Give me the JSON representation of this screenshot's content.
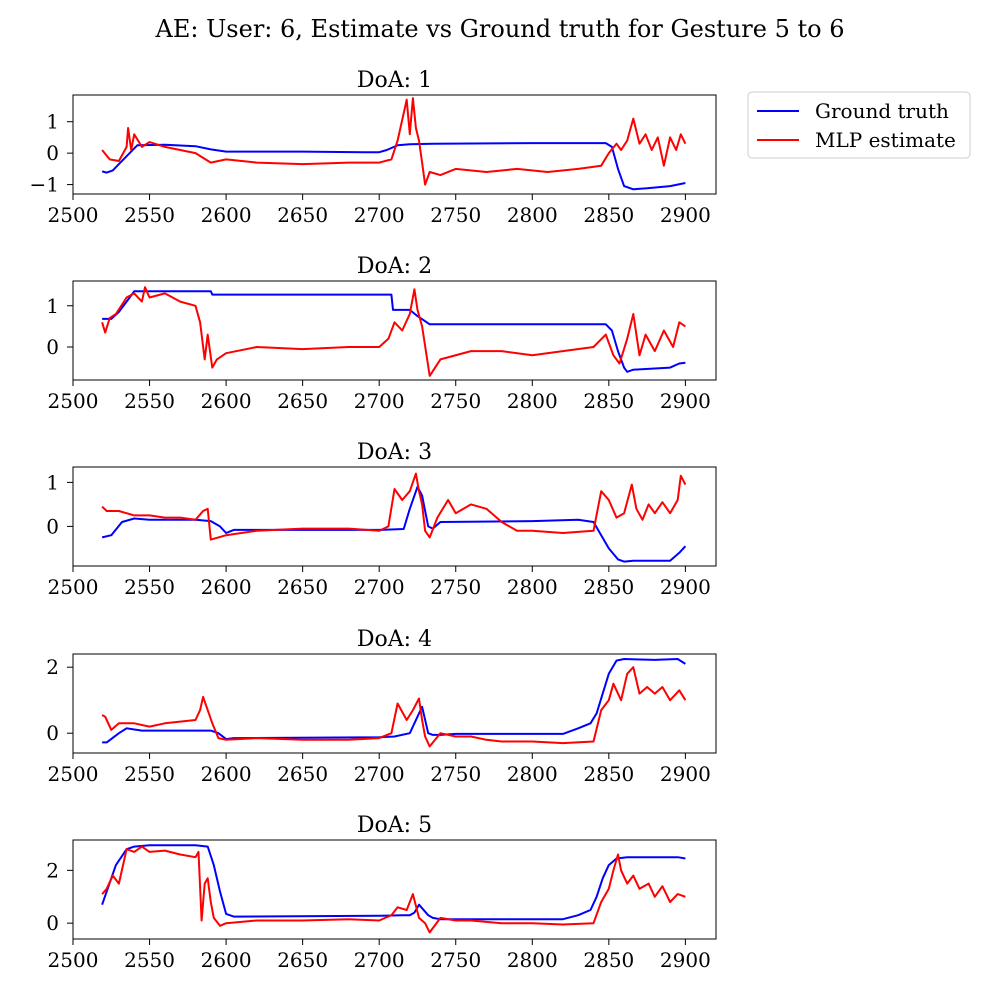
{
  "suptitle": "AE: User: 6, Estimate vs Ground truth for Gesture 5 to 6",
  "legend": [
    {
      "label": "Ground truth",
      "color": "#0000ff"
    },
    {
      "label": "MLP estimate",
      "color": "#ff0000"
    }
  ],
  "chart_data": [
    {
      "type": "line",
      "title": "DoA: 1",
      "xlim": [
        2500,
        2920
      ],
      "ylim": [
        -1.3,
        1.85
      ],
      "xticks": [
        2500,
        2550,
        2600,
        2650,
        2700,
        2750,
        2800,
        2850,
        2900
      ],
      "yticks": [
        -1,
        0,
        1
      ],
      "ytick_labels": [
        "−1",
        "0",
        "1"
      ],
      "series": [
        {
          "name": "Ground truth",
          "color": "#0000ff",
          "x": [
            2519,
            2522,
            2526,
            2530,
            2536,
            2542,
            2560,
            2580,
            2590,
            2600,
            2650,
            2690,
            2700,
            2705,
            2712,
            2720,
            2735,
            2800,
            2848,
            2852,
            2856,
            2860,
            2866,
            2875,
            2890,
            2900
          ],
          "y": [
            -0.58,
            -0.62,
            -0.55,
            -0.35,
            -0.05,
            0.25,
            0.27,
            0.22,
            0.12,
            0.05,
            0.05,
            0.03,
            0.03,
            0.1,
            0.25,
            0.28,
            0.3,
            0.32,
            0.32,
            0.2,
            -0.5,
            -1.05,
            -1.15,
            -1.12,
            -1.05,
            -0.95
          ]
        },
        {
          "name": "MLP estimate",
          "color": "#ff0000",
          "x": [
            2519,
            2524,
            2530,
            2535,
            2536,
            2538,
            2540,
            2545,
            2550,
            2560,
            2570,
            2580,
            2590,
            2600,
            2620,
            2650,
            2680,
            2700,
            2708,
            2712,
            2718,
            2720,
            2722,
            2724,
            2726,
            2728,
            2730,
            2733,
            2740,
            2750,
            2770,
            2790,
            2810,
            2830,
            2845,
            2850,
            2855,
            2858,
            2862,
            2866,
            2870,
            2874,
            2878,
            2882,
            2886,
            2890,
            2894,
            2897,
            2900
          ],
          "y": [
            0.1,
            -0.2,
            -0.25,
            0.2,
            0.8,
            0.1,
            0.6,
            0.2,
            0.35,
            0.2,
            0.1,
            0.0,
            -0.3,
            -0.2,
            -0.3,
            -0.35,
            -0.3,
            -0.3,
            -0.2,
            0.4,
            1.7,
            0.6,
            1.75,
            0.8,
            0.4,
            -0.3,
            -1.0,
            -0.6,
            -0.7,
            -0.5,
            -0.6,
            -0.5,
            -0.6,
            -0.5,
            -0.4,
            0.0,
            0.3,
            0.1,
            0.4,
            1.1,
            0.3,
            0.6,
            0.1,
            0.5,
            -0.4,
            0.5,
            0.1,
            0.6,
            0.3
          ]
        }
      ]
    },
    {
      "type": "line",
      "title": "DoA: 2",
      "xlim": [
        2500,
        2920
      ],
      "ylim": [
        -0.8,
        1.6
      ],
      "xticks": [
        2500,
        2550,
        2600,
        2650,
        2700,
        2750,
        2800,
        2850,
        2900
      ],
      "yticks": [
        0,
        1
      ],
      "ytick_labels": [
        "0",
        "1"
      ],
      "series": [
        {
          "name": "Ground truth",
          "color": "#0000ff",
          "x": [
            2519,
            2525,
            2530,
            2536,
            2540,
            2590,
            2591,
            2708,
            2709,
            2720,
            2725,
            2733,
            2848,
            2852,
            2856,
            2860,
            2862,
            2866,
            2890,
            2896,
            2900
          ],
          "y": [
            0.68,
            0.68,
            0.85,
            1.15,
            1.35,
            1.35,
            1.27,
            1.27,
            0.9,
            0.9,
            0.75,
            0.55,
            0.55,
            0.4,
            -0.1,
            -0.5,
            -0.6,
            -0.55,
            -0.5,
            -0.4,
            -0.38
          ]
        },
        {
          "name": "MLP estimate",
          "color": "#ff0000",
          "x": [
            2519,
            2521,
            2524,
            2528,
            2535,
            2540,
            2545,
            2547,
            2550,
            2560,
            2570,
            2580,
            2583,
            2586,
            2588,
            2591,
            2594,
            2600,
            2620,
            2650,
            2680,
            2700,
            2706,
            2710,
            2715,
            2720,
            2723,
            2725,
            2728,
            2733,
            2740,
            2760,
            2780,
            2800,
            2820,
            2840,
            2848,
            2853,
            2857,
            2862,
            2866,
            2870,
            2874,
            2880,
            2886,
            2892,
            2896,
            2900
          ],
          "y": [
            0.6,
            0.35,
            0.7,
            0.8,
            1.2,
            1.3,
            1.1,
            1.45,
            1.2,
            1.3,
            1.1,
            1.0,
            0.6,
            -0.3,
            0.3,
            -0.5,
            -0.3,
            -0.15,
            0.0,
            -0.05,
            0.0,
            0.0,
            0.2,
            0.6,
            0.4,
            0.8,
            1.4,
            0.9,
            0.5,
            -0.7,
            -0.3,
            -0.1,
            -0.1,
            -0.2,
            -0.1,
            0.0,
            0.3,
            -0.2,
            -0.4,
            0.2,
            0.8,
            -0.2,
            0.3,
            -0.1,
            0.4,
            0.0,
            0.6,
            0.5
          ]
        }
      ]
    },
    {
      "type": "line",
      "title": "DoA: 3",
      "xlim": [
        2500,
        2920
      ],
      "ylim": [
        -0.9,
        1.35
      ],
      "xticks": [
        2500,
        2550,
        2600,
        2650,
        2700,
        2750,
        2800,
        2850,
        2900
      ],
      "yticks": [
        0,
        1
      ],
      "ytick_labels": [
        "0",
        "1"
      ],
      "series": [
        {
          "name": "Ground truth",
          "color": "#0000ff",
          "x": [
            2519,
            2525,
            2532,
            2540,
            2550,
            2580,
            2590,
            2596,
            2600,
            2605,
            2700,
            2716,
            2720,
            2725,
            2728,
            2732,
            2735,
            2740,
            2800,
            2830,
            2840,
            2845,
            2850,
            2856,
            2860,
            2866,
            2880,
            2890,
            2896,
            2900
          ],
          "y": [
            -0.25,
            -0.2,
            0.1,
            0.18,
            0.15,
            0.15,
            0.12,
            0.0,
            -0.15,
            -0.08,
            -0.08,
            -0.06,
            0.4,
            0.9,
            0.7,
            0.0,
            -0.05,
            0.1,
            0.12,
            0.15,
            0.1,
            -0.2,
            -0.5,
            -0.75,
            -0.8,
            -0.78,
            -0.78,
            -0.78,
            -0.6,
            -0.45
          ]
        },
        {
          "name": "MLP estimate",
          "color": "#ff0000",
          "x": [
            2519,
            2522,
            2530,
            2540,
            2550,
            2560,
            2570,
            2580,
            2585,
            2588,
            2590,
            2595,
            2600,
            2620,
            2650,
            2680,
            2700,
            2706,
            2710,
            2715,
            2720,
            2724,
            2726,
            2728,
            2730,
            2733,
            2738,
            2745,
            2750,
            2760,
            2770,
            2780,
            2790,
            2800,
            2820,
            2840,
            2845,
            2850,
            2855,
            2860,
            2865,
            2868,
            2872,
            2876,
            2880,
            2885,
            2890,
            2895,
            2897,
            2900
          ],
          "y": [
            0.45,
            0.35,
            0.35,
            0.25,
            0.25,
            0.2,
            0.2,
            0.15,
            0.35,
            0.4,
            -0.3,
            -0.25,
            -0.2,
            -0.1,
            -0.05,
            -0.05,
            -0.1,
            0.0,
            0.85,
            0.6,
            0.8,
            1.2,
            0.8,
            0.5,
            -0.1,
            -0.25,
            0.2,
            0.6,
            0.3,
            0.5,
            0.4,
            0.1,
            -0.1,
            -0.1,
            -0.15,
            -0.1,
            0.8,
            0.6,
            0.2,
            0.3,
            0.95,
            0.4,
            0.15,
            0.5,
            0.3,
            0.55,
            0.3,
            0.6,
            1.15,
            0.95
          ]
        }
      ]
    },
    {
      "type": "line",
      "title": "DoA: 4",
      "xlim": [
        2500,
        2920
      ],
      "ylim": [
        -0.6,
        2.4
      ],
      "xticks": [
        2500,
        2550,
        2600,
        2650,
        2700,
        2750,
        2800,
        2850,
        2900
      ],
      "yticks": [
        0,
        2
      ],
      "ytick_labels": [
        "0",
        "2"
      ],
      "series": [
        {
          "name": "Ground truth",
          "color": "#0000ff",
          "x": [
            2519,
            2522,
            2530,
            2535,
            2545,
            2580,
            2590,
            2595,
            2600,
            2605,
            2700,
            2710,
            2720,
            2725,
            2728,
            2732,
            2735,
            2740,
            2750,
            2800,
            2820,
            2830,
            2838,
            2842,
            2846,
            2850,
            2855,
            2860,
            2880,
            2895,
            2900
          ],
          "y": [
            -0.28,
            -0.28,
            0.0,
            0.15,
            0.08,
            0.08,
            0.08,
            0.0,
            -0.18,
            -0.15,
            -0.12,
            -0.1,
            0.0,
            0.5,
            0.8,
            0.0,
            -0.05,
            -0.05,
            -0.02,
            -0.02,
            -0.02,
            0.15,
            0.3,
            0.6,
            1.2,
            1.8,
            2.2,
            2.25,
            2.22,
            2.25,
            2.1
          ]
        },
        {
          "name": "MLP estimate",
          "color": "#ff0000",
          "x": [
            2519,
            2521,
            2525,
            2530,
            2540,
            2550,
            2560,
            2570,
            2580,
            2583,
            2585,
            2588,
            2591,
            2595,
            2600,
            2620,
            2650,
            2680,
            2700,
            2708,
            2712,
            2718,
            2722,
            2726,
            2728,
            2730,
            2733,
            2740,
            2750,
            2760,
            2770,
            2780,
            2800,
            2820,
            2840,
            2845,
            2850,
            2853,
            2856,
            2858,
            2862,
            2866,
            2870,
            2875,
            2880,
            2885,
            2890,
            2896,
            2900
          ],
          "y": [
            0.55,
            0.5,
            0.1,
            0.3,
            0.3,
            0.2,
            0.3,
            0.35,
            0.4,
            0.7,
            1.1,
            0.7,
            0.3,
            -0.15,
            -0.2,
            -0.15,
            -0.2,
            -0.2,
            -0.15,
            0.0,
            0.9,
            0.4,
            0.7,
            1.05,
            0.4,
            -0.1,
            -0.4,
            0.0,
            -0.1,
            -0.1,
            -0.2,
            -0.25,
            -0.25,
            -0.3,
            -0.25,
            0.7,
            1.0,
            1.5,
            1.2,
            1.0,
            1.8,
            2.0,
            1.2,
            1.4,
            1.2,
            1.4,
            1.0,
            1.3,
            1.0
          ]
        }
      ]
    },
    {
      "type": "line",
      "title": "DoA: 5",
      "xlim": [
        2500,
        2920
      ],
      "ylim": [
        -0.6,
        3.15
      ],
      "xticks": [
        2500,
        2550,
        2600,
        2650,
        2700,
        2750,
        2800,
        2850,
        2900
      ],
      "yticks": [
        0,
        2
      ],
      "ytick_labels": [
        "0",
        "2"
      ],
      "series": [
        {
          "name": "Ground truth",
          "color": "#0000ff",
          "x": [
            2519,
            2522,
            2528,
            2535,
            2540,
            2550,
            2580,
            2588,
            2592,
            2596,
            2600,
            2605,
            2700,
            2715,
            2720,
            2723,
            2726,
            2732,
            2735,
            2740,
            2800,
            2820,
            2830,
            2838,
            2842,
            2846,
            2850,
            2855,
            2862,
            2880,
            2895,
            2900
          ],
          "y": [
            0.7,
            1.2,
            2.2,
            2.8,
            2.9,
            2.95,
            2.95,
            2.9,
            2.2,
            1.2,
            0.35,
            0.25,
            0.28,
            0.3,
            0.3,
            0.4,
            0.7,
            0.3,
            0.2,
            0.15,
            0.15,
            0.15,
            0.3,
            0.5,
            1.0,
            1.7,
            2.2,
            2.45,
            2.5,
            2.5,
            2.5,
            2.45
          ]
        },
        {
          "name": "MLP estimate",
          "color": "#ff0000",
          "x": [
            2519,
            2522,
            2526,
            2530,
            2535,
            2540,
            2545,
            2550,
            2560,
            2570,
            2580,
            2582,
            2584,
            2586,
            2588,
            2590,
            2592,
            2596,
            2600,
            2620,
            2650,
            2680,
            2700,
            2708,
            2712,
            2718,
            2722,
            2726,
            2730,
            2733,
            2740,
            2750,
            2760,
            2780,
            2800,
            2820,
            2840,
            2845,
            2850,
            2853,
            2856,
            2858,
            2862,
            2866,
            2870,
            2876,
            2880,
            2885,
            2890,
            2895,
            2900
          ],
          "y": [
            1.1,
            1.3,
            1.8,
            1.5,
            2.8,
            2.7,
            2.9,
            2.7,
            2.75,
            2.6,
            2.5,
            2.7,
            0.1,
            1.5,
            1.7,
            0.8,
            0.2,
            -0.1,
            0.0,
            0.1,
            0.1,
            0.15,
            0.1,
            0.3,
            0.6,
            0.5,
            1.1,
            0.2,
            0.0,
            -0.35,
            0.2,
            0.1,
            0.1,
            0.0,
            0.0,
            -0.05,
            0.0,
            0.8,
            1.3,
            2.0,
            2.6,
            2.0,
            1.5,
            1.8,
            1.3,
            1.5,
            1.0,
            1.4,
            0.8,
            1.1,
            1.0
          ]
        }
      ]
    }
  ]
}
